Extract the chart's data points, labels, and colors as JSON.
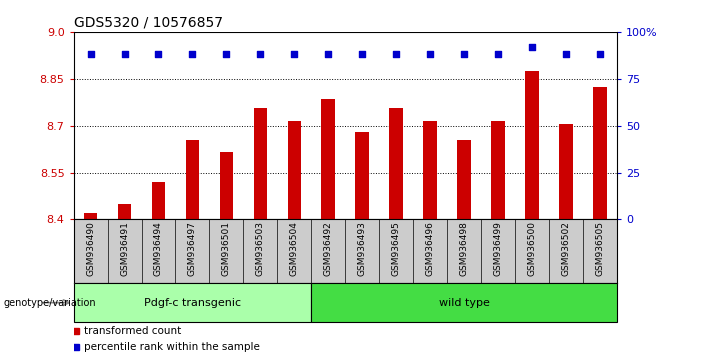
{
  "title": "GDS5320 / 10576857",
  "samples": [
    "GSM936490",
    "GSM936491",
    "GSM936494",
    "GSM936497",
    "GSM936501",
    "GSM936503",
    "GSM936504",
    "GSM936492",
    "GSM936493",
    "GSM936495",
    "GSM936496",
    "GSM936498",
    "GSM936499",
    "GSM936500",
    "GSM936502",
    "GSM936505"
  ],
  "bar_values": [
    8.42,
    8.45,
    8.52,
    8.655,
    8.615,
    8.755,
    8.715,
    8.785,
    8.68,
    8.755,
    8.715,
    8.655,
    8.715,
    8.875,
    8.705,
    8.825
  ],
  "percentile_values": [
    88,
    88,
    88,
    88,
    88,
    88,
    88,
    88,
    88,
    88,
    88,
    88,
    88,
    92,
    88,
    88
  ],
  "bar_color": "#cc0000",
  "percentile_color": "#0000cc",
  "ylim_left": [
    8.4,
    9.0
  ],
  "ylim_right": [
    0,
    100
  ],
  "yticks_left": [
    8.4,
    8.55,
    8.7,
    8.85,
    9.0
  ],
  "yticks_right": [
    0,
    25,
    50,
    75,
    100
  ],
  "grid_lines": [
    8.55,
    8.7,
    8.85
  ],
  "group1_label": "Pdgf-c transgenic",
  "group2_label": "wild type",
  "group1_count": 7,
  "group2_count": 9,
  "group1_color": "#aaffaa",
  "group2_color": "#44dd44",
  "genotype_label": "genotype/variation",
  "legend_bar_label": "transformed count",
  "legend_pct_label": "percentile rank within the sample",
  "tick_area_color": "#cccccc",
  "bar_width": 0.4
}
